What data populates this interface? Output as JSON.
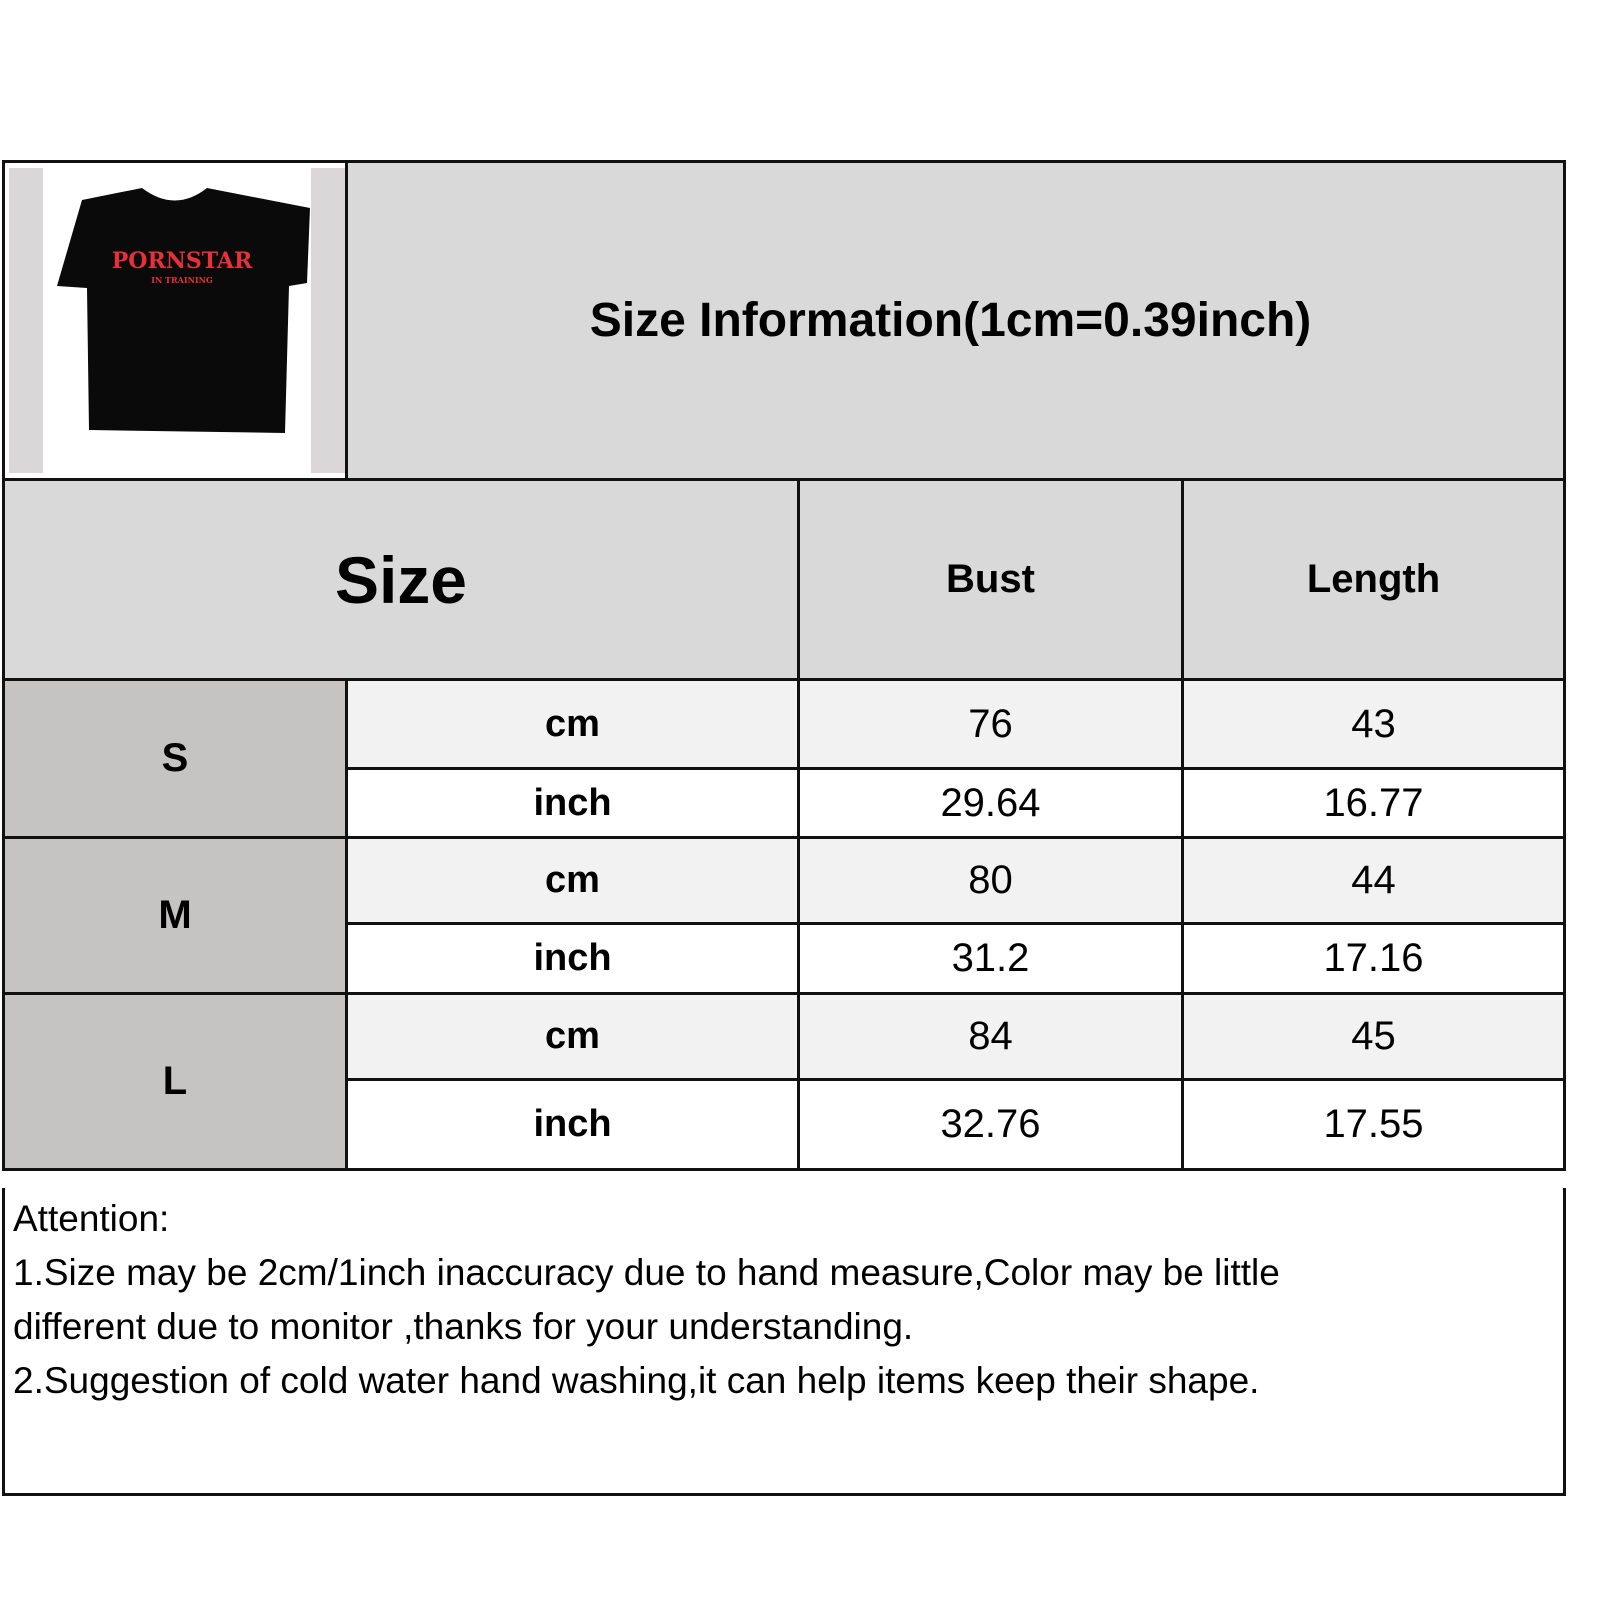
{
  "product_image": {
    "alt": "black t-shirt",
    "print_lettering": [
      "PORNSTAR",
      "IN TRAINING"
    ],
    "shirt_color": "#0a0a0a",
    "print_color": "#e8303a"
  },
  "title": "Size Information(1cm=0.39inch)",
  "header": {
    "size": "Size",
    "columns": [
      "Bust",
      "Length"
    ]
  },
  "rows": [
    {
      "size": "S",
      "cm": {
        "unit": "cm",
        "bust": "76",
        "length": "43"
      },
      "inch": {
        "unit": "inch",
        "bust": "29.64",
        "length": "16.77"
      }
    },
    {
      "size": "M",
      "cm": {
        "unit": "cm",
        "bust": "80",
        "length": "44"
      },
      "inch": {
        "unit": "inch",
        "bust": "31.2",
        "length": "17.16"
      }
    },
    {
      "size": "L",
      "cm": {
        "unit": "cm",
        "bust": "84",
        "length": "45"
      },
      "inch": {
        "unit": "inch",
        "bust": "32.76",
        "length": "17.55"
      }
    }
  ],
  "notes": {
    "heading": "Attention:",
    "lines": [
      "1.Size may be 2cm/1inch inaccuracy due to hand measure,Color may be little",
      "different due to monitor ,thanks for your understanding.",
      "2.Suggestion of cold water hand washing,it can help items keep their shape."
    ]
  },
  "colors": {
    "header": "#d9d9d9",
    "size_column": "#c6c3c3",
    "cm_row": "#f2f2f2",
    "border": "#111111"
  }
}
